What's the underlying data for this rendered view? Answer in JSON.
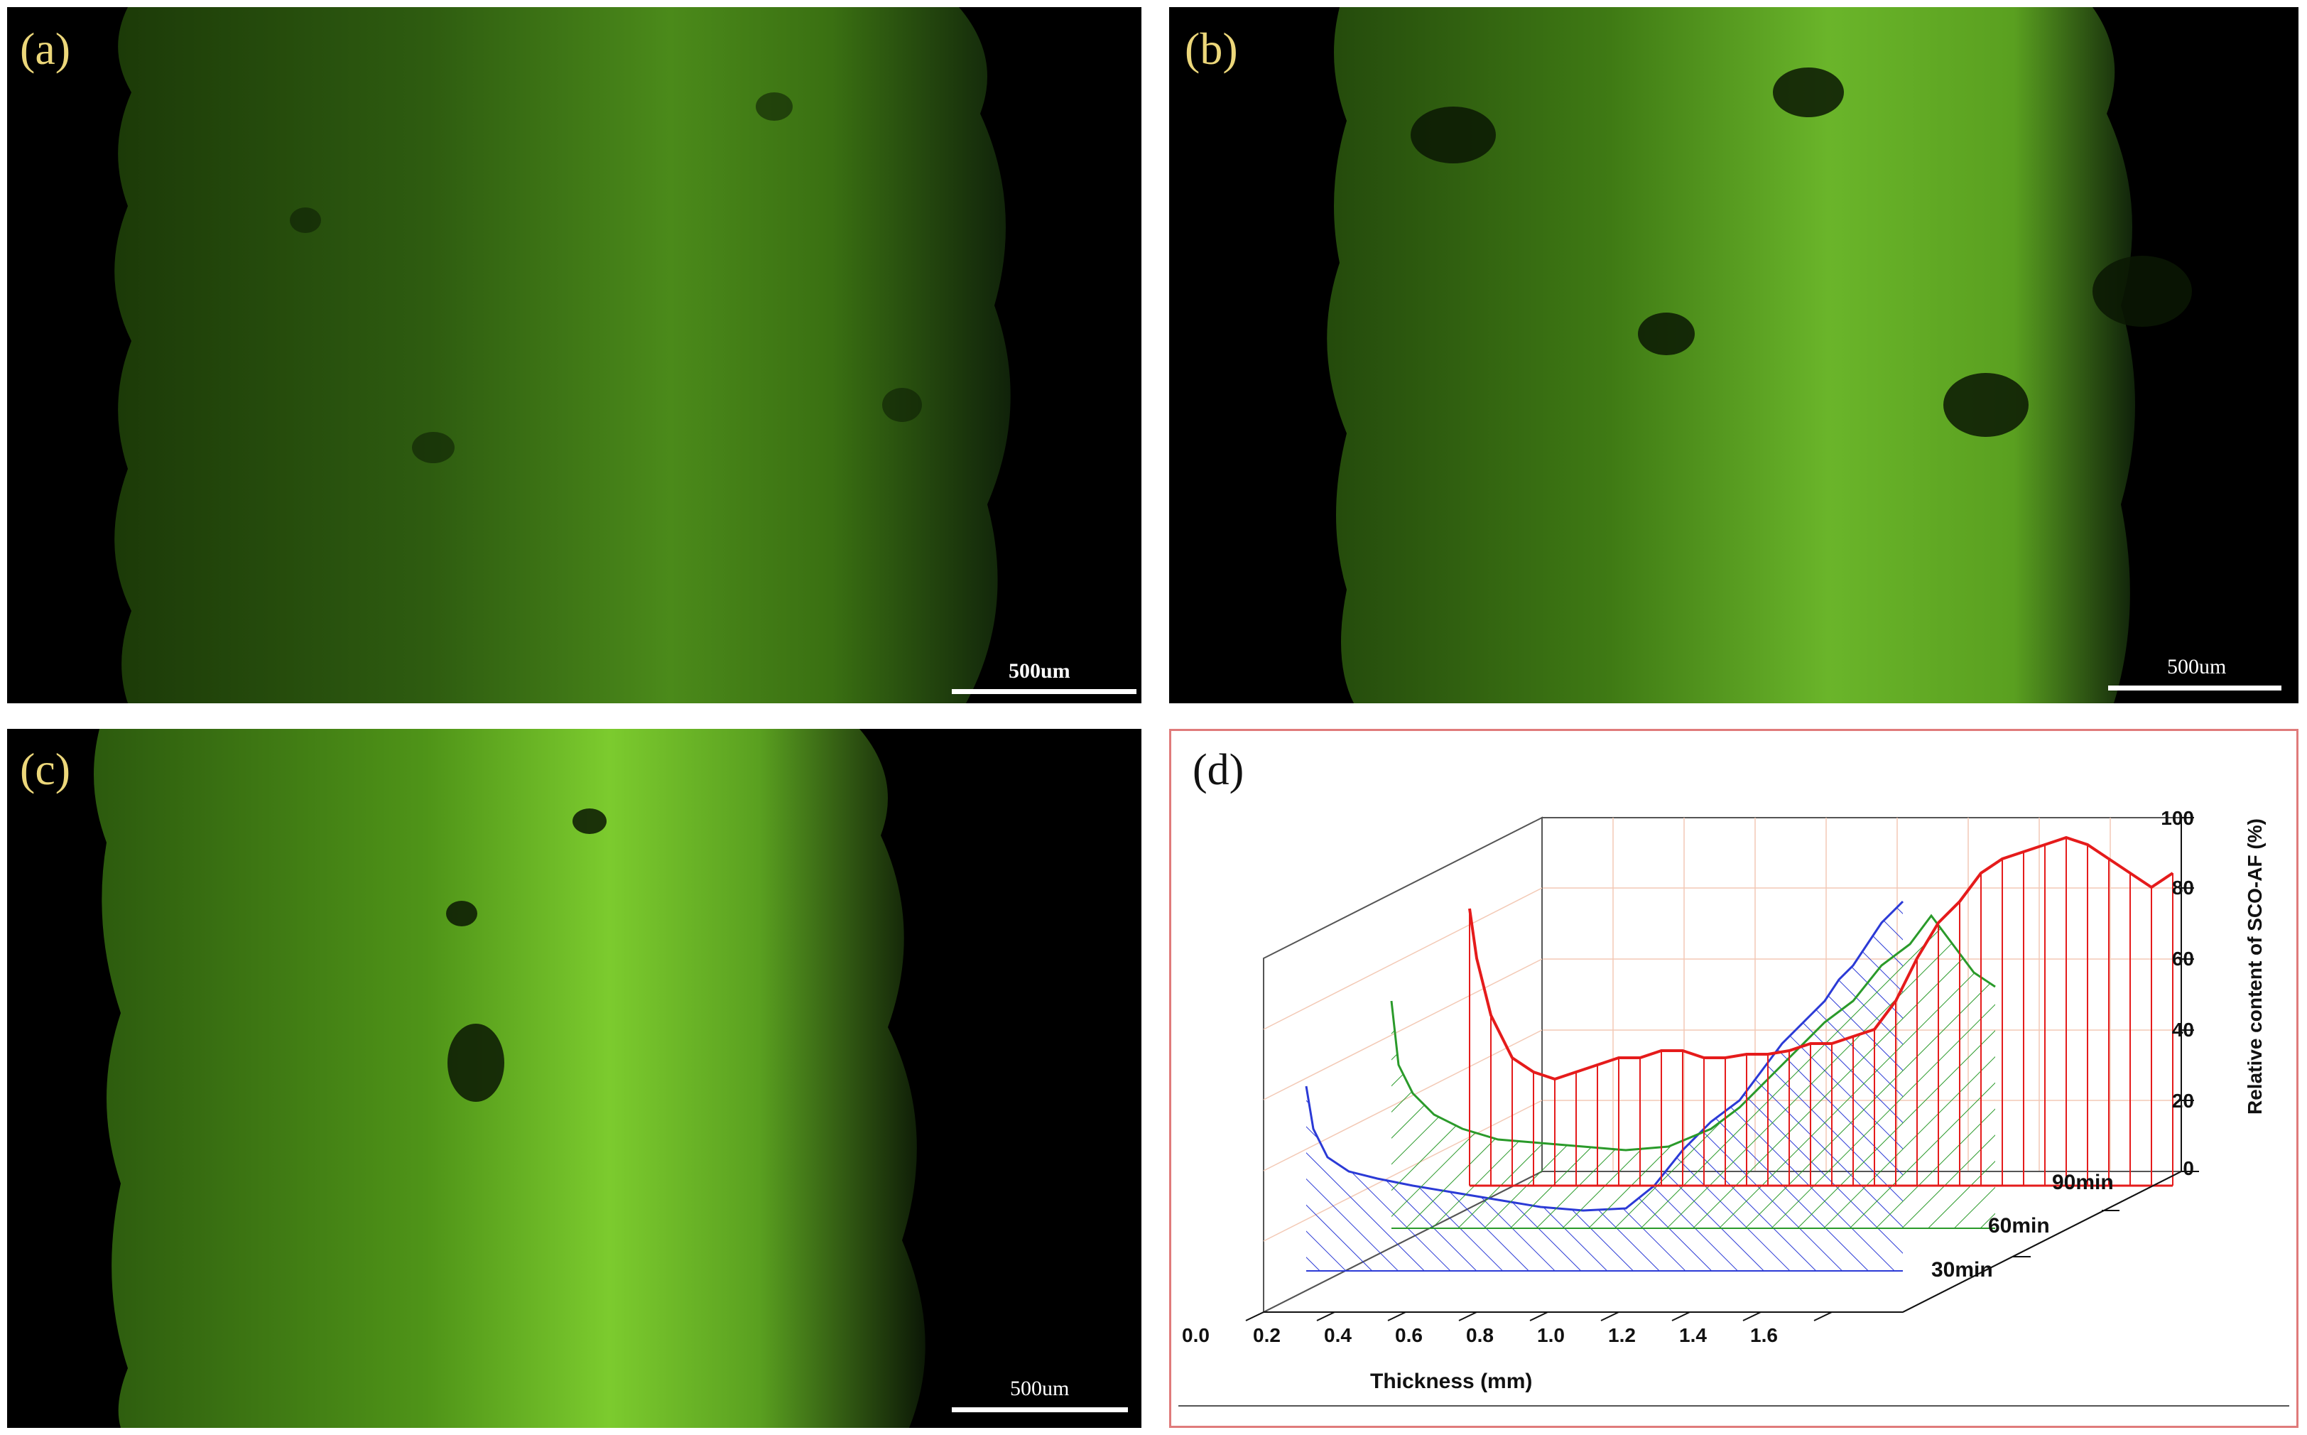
{
  "panels": [
    {
      "id": "a",
      "label": "(a)",
      "scale_label": "500um"
    },
    {
      "id": "b",
      "label": "(b)",
      "scale_label": "500um"
    },
    {
      "id": "c",
      "label": "(c)",
      "scale_label": "500um"
    }
  ],
  "plot": {
    "label": "(d)",
    "x_axis_title": "Thickness (mm)",
    "x_ticks": [
      "0.0",
      "0.2",
      "0.4",
      "0.6",
      "0.8",
      "1.0",
      "1.2",
      "1.4",
      "1.6"
    ],
    "z_axis_title": "Relative content of SCO-AF (%)",
    "z_ticks": [
      "0",
      "20",
      "40",
      "60",
      "80",
      "100"
    ],
    "y_ticks": [
      "30min",
      "60min",
      "90min"
    ],
    "series_colors": {
      "30min": "#2b3ad6",
      "60min": "#2a9a2a",
      "90min": "#e51b1b"
    }
  }
}
